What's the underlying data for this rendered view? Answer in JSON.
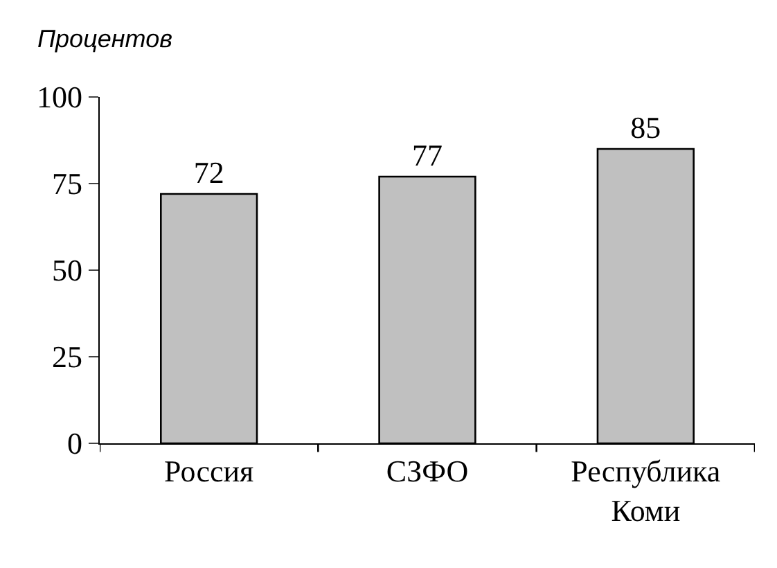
{
  "chart_data": {
    "type": "bar",
    "ylabel": "Процентов",
    "categories": [
      "Россия",
      "СЗФО",
      "Республика Коми"
    ],
    "values": [
      72,
      77,
      85
    ],
    "color": "#c0c0c0",
    "ylim": [
      0,
      100
    ],
    "yticks": [
      0,
      25,
      50,
      75,
      100
    ],
    "grid": false,
    "data_labels": true
  }
}
